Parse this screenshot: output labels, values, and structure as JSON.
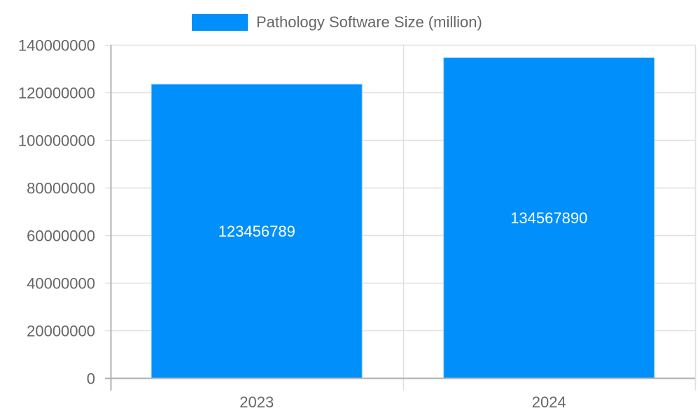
{
  "chart_data": {
    "type": "bar",
    "title": "",
    "categories": [
      "2023",
      "2024"
    ],
    "series": [
      {
        "name": "Pathology Software Size (million)",
        "values": [
          123456789,
          134567890
        ],
        "color": "#008ffb"
      }
    ],
    "xlabel": "",
    "ylabel": "",
    "ylim": [
      0,
      140000000
    ],
    "yticks": [
      0,
      20000000,
      40000000,
      60000000,
      80000000,
      100000000,
      120000000,
      140000000
    ],
    "ytick_labels": [
      "0",
      "20000000",
      "40000000",
      "60000000",
      "80000000",
      "100000000",
      "120000000",
      "140000000"
    ],
    "data_labels": [
      "123456789",
      "134567890"
    ],
    "grid": true,
    "legend_position": "top"
  },
  "legend": {
    "label": "Pathology Software Size (million)",
    "color": "#008ffb"
  }
}
